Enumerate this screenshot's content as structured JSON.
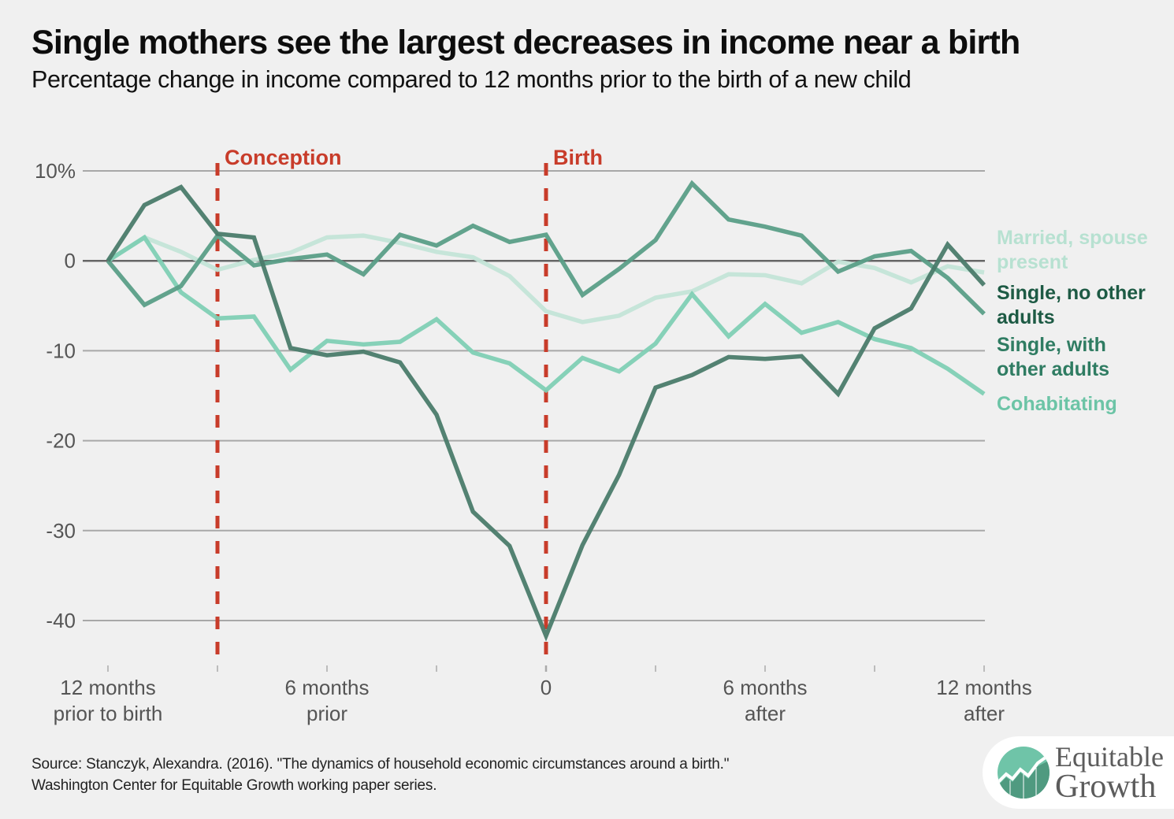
{
  "header": {
    "title": "Single mothers see the largest decreases in income near a birth",
    "subtitle": "Percentage change in income compared to 12 months prior to the birth of a new child"
  },
  "chart_data": {
    "type": "line",
    "title": "Single mothers see the largest decreases in income near a birth",
    "subtitle": "Percentage change in income compared to 12 months prior to the birth of a new child",
    "xlabel": "",
    "ylabel": "",
    "x": [
      -12,
      -11,
      -10,
      -9,
      -8,
      -7,
      -6,
      -5,
      -4,
      -3,
      -2,
      -1,
      0,
      1,
      2,
      3,
      4,
      5,
      6,
      7,
      8,
      9,
      10,
      11,
      12
    ],
    "xlim": [
      -12,
      12
    ],
    "ylim": [
      -45,
      10
    ],
    "yticks": [
      10,
      0,
      -10,
      -20,
      -30,
      -40
    ],
    "ytick_labels": [
      "10%",
      "0",
      "-10",
      "-20",
      "-30",
      "-40"
    ],
    "xtick_marks": [
      -12,
      -9,
      -6,
      -3,
      0,
      3,
      6,
      9,
      12
    ],
    "xtick_labels": [
      {
        "x": -12,
        "lines": [
          "12 months",
          "prior to birth"
        ]
      },
      {
        "x": -6,
        "lines": [
          "6 months",
          "prior"
        ]
      },
      {
        "x": 0,
        "lines": [
          "0"
        ]
      },
      {
        "x": 6,
        "lines": [
          "6 months",
          "after"
        ]
      },
      {
        "x": 12,
        "lines": [
          "12 months",
          "after"
        ]
      }
    ],
    "grid": true,
    "annotations": [
      {
        "x": -9,
        "label": "Conception",
        "color": "#c83c2a",
        "style": "dashed-vertical"
      },
      {
        "x": 0,
        "label": "Birth",
        "color": "#c83c2a",
        "style": "dashed-vertical"
      }
    ],
    "legend_placement": "right (direct labels)",
    "series": [
      {
        "name": "Married, spouse present",
        "label_lines": [
          "Married, spouse",
          "present"
        ],
        "line_color": "#c3e4d7",
        "label_color": "#b7e1d1",
        "values": [
          0,
          2.6,
          1.0,
          -1.0,
          0.1,
          0.9,
          2.6,
          2.8,
          2.0,
          1.0,
          0.4,
          -1.7,
          -5.6,
          -6.8,
          -6.1,
          -4.1,
          -3.4,
          -1.5,
          -1.6,
          -2.5,
          -0.1,
          -0.8,
          -2.4,
          -0.6,
          -1.3
        ]
      },
      {
        "name": "Cohabitating",
        "label_lines": [
          "Cohabitating"
        ],
        "line_color": "#80cfb4",
        "label_color": "#6cc4a6",
        "values": [
          0,
          2.6,
          -3.5,
          -6.4,
          -6.2,
          -12.1,
          -8.9,
          -9.3,
          -9.0,
          -6.5,
          -10.2,
          -11.4,
          -14.4,
          -10.8,
          -12.3,
          -9.2,
          -3.7,
          -8.4,
          -4.8,
          -8.0,
          -6.8,
          -8.7,
          -9.7,
          -12.0,
          -14.8
        ]
      },
      {
        "name": "Single, with other adults",
        "label_lines": [
          "Single, with",
          "other adults"
        ],
        "line_color": "#5a9e87",
        "label_color": "#2f7c62",
        "values": [
          0,
          -4.9,
          -2.8,
          2.8,
          -0.5,
          0.2,
          0.7,
          -1.5,
          2.9,
          1.7,
          3.9,
          2.1,
          2.9,
          -3.8,
          -0.9,
          2.3,
          8.6,
          4.6,
          3.8,
          2.8,
          -1.2,
          0.5,
          1.1,
          -1.9,
          -5.9
        ]
      },
      {
        "name": "Single, no other adults",
        "label_lines": [
          "Single, no other",
          "adults"
        ],
        "line_color": "#4a7b6a",
        "label_color": "#1d5a44",
        "values": [
          0,
          6.2,
          8.2,
          3.0,
          2.6,
          -9.7,
          -10.5,
          -10.1,
          -11.3,
          -17.1,
          -27.9,
          -31.7,
          -41.7,
          -31.6,
          -23.8,
          -14.1,
          -12.7,
          -10.7,
          -10.9,
          -10.6,
          -14.8,
          -7.5,
          -5.3,
          1.8,
          -2.7
        ]
      }
    ]
  },
  "footer": {
    "source_line1": "Source: Stanczyk, Alexandra. (2016). \"The dynamics of household economic circumstances around a birth.\"",
    "source_line2": "Washington Center for Equitable Growth working paper series.",
    "logo_line1": "Equitable",
    "logo_line2": "Growth"
  }
}
